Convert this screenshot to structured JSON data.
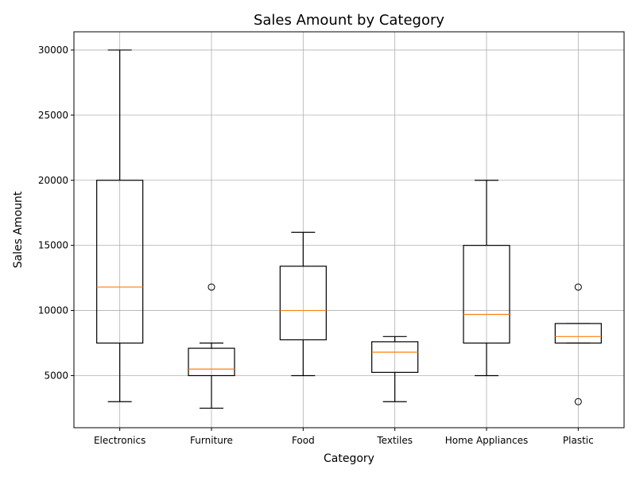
{
  "chart_data": {
    "type": "boxplot",
    "title": "Sales Amount by Category",
    "xlabel": "Category",
    "ylabel": "Sales Amount",
    "ylim": [
      1000,
      31400
    ],
    "yticks": [
      5000,
      10000,
      15000,
      20000,
      25000,
      30000
    ],
    "grid": true,
    "categories": [
      "Electronics",
      "Furniture",
      "Food",
      "Textiles",
      "Home Appliances",
      "Plastic"
    ],
    "boxes": [
      {
        "name": "Electronics",
        "whisker_low": 3000,
        "q1": 7500,
        "median": 11800,
        "q3": 20000,
        "whisker_high": 30000,
        "outliers": []
      },
      {
        "name": "Furniture",
        "whisker_low": 2500,
        "q1": 5000,
        "median": 5500,
        "q3": 7100,
        "whisker_high": 7500,
        "outliers": [
          11800
        ]
      },
      {
        "name": "Food",
        "whisker_low": 5000,
        "q1": 7750,
        "median": 10000,
        "q3": 13400,
        "whisker_high": 16000,
        "outliers": []
      },
      {
        "name": "Textiles",
        "whisker_low": 3000,
        "q1": 5250,
        "median": 6800,
        "q3": 7600,
        "whisker_high": 8000,
        "outliers": []
      },
      {
        "name": "Home Appliances",
        "whisker_low": 5000,
        "q1": 7500,
        "median": 9700,
        "q3": 15000,
        "whisker_high": 20000,
        "outliers": []
      },
      {
        "name": "Plastic",
        "whisker_low": 7500,
        "q1": 7500,
        "median": 8000,
        "q3": 9000,
        "whisker_high": 9000,
        "outliers": [
          11800,
          3000
        ]
      }
    ],
    "colors": {
      "box": "#000000",
      "median": "#ff7f0e",
      "grid": "#b0b0b0"
    }
  }
}
